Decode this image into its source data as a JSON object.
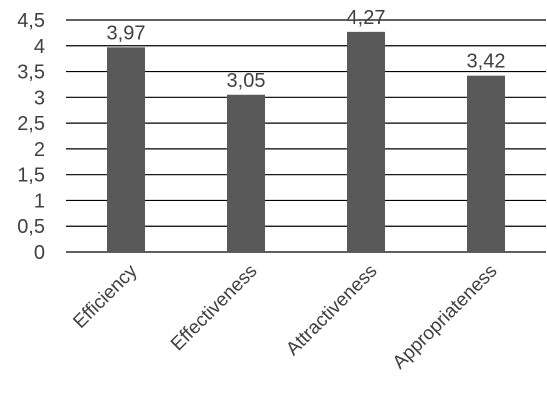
{
  "chart_data": {
    "type": "bar",
    "title": "",
    "xlabel": "",
    "ylabel": "",
    "categories": [
      "Efficiency",
      "Effectiveness",
      "Attractiveness",
      "Appropriateness"
    ],
    "values": [
      3.97,
      3.05,
      4.27,
      3.42
    ],
    "data_labels": [
      "3,97",
      "3,05",
      "4,27",
      "3,42"
    ],
    "ylim": [
      0,
      4.5
    ],
    "yticks": [
      "0",
      "0,5",
      "1",
      "1,5",
      "2",
      "2,5",
      "3",
      "3,5",
      "4",
      "4,5"
    ],
    "grid": true,
    "legend": "none",
    "bar_color": "#595959",
    "grid_color": "#000000"
  }
}
